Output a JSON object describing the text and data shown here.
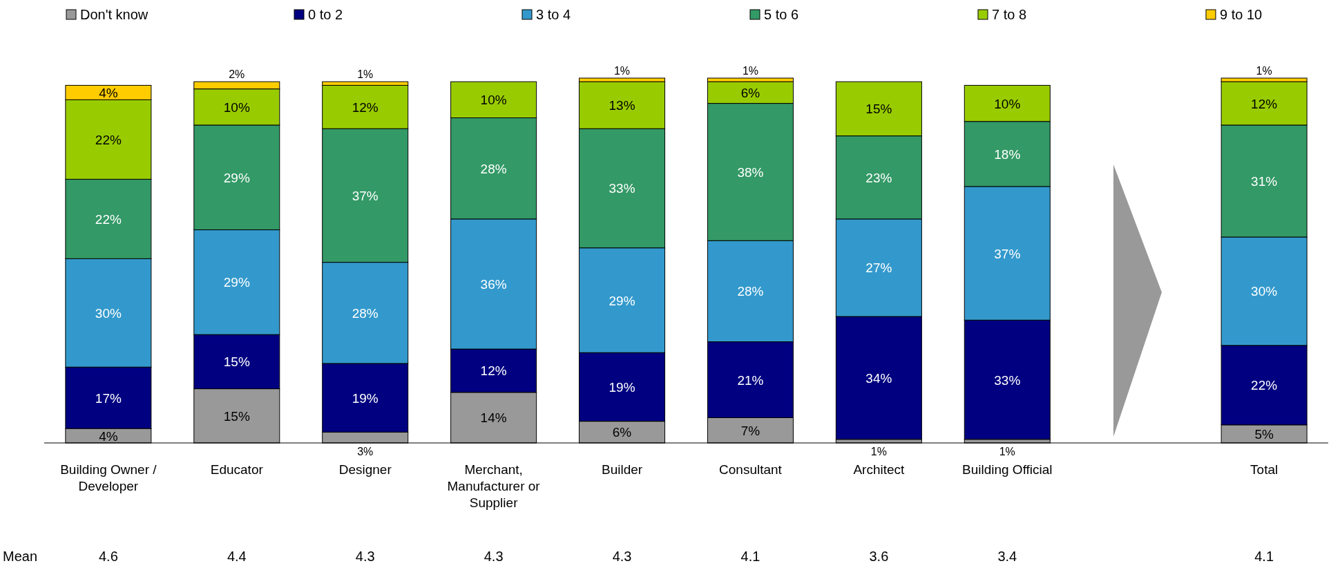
{
  "chart_data": {
    "type": "bar",
    "stacked": true,
    "legend": "top",
    "tick_labels": "x",
    "categories": [
      "Building Owner / Developer",
      "Educator",
      "Designer",
      "Merchant, Manufacturer or Supplier",
      "Builder",
      "Consultant",
      "Architect",
      "Building Official",
      null,
      "Total"
    ],
    "series": [
      {
        "name": "Don't know",
        "color": "#999999",
        "values": [
          4,
          15,
          3,
          14,
          6,
          7,
          1,
          1,
          null,
          5
        ],
        "value_labels": [
          "4%",
          "15%",
          "3%",
          "14%",
          "6%",
          "7%",
          "1%",
          "1%",
          null,
          "5%"
        ]
      },
      {
        "name": "0 to 2",
        "color": "#000080",
        "values": [
          17,
          15,
          19,
          12,
          19,
          21,
          34,
          33,
          null,
          22
        ],
        "value_labels": [
          "17%",
          "15%",
          "19%",
          "12%",
          "19%",
          "21%",
          "34%",
          "33%",
          null,
          "22%"
        ]
      },
      {
        "name": "3 to 4",
        "color": "#3399cc",
        "values": [
          30,
          29,
          28,
          36,
          29,
          28,
          27,
          37,
          null,
          30
        ],
        "value_labels": [
          "30%",
          "29%",
          "28%",
          "36%",
          "29%",
          "28%",
          "27%",
          "37%",
          null,
          "30%"
        ]
      },
      {
        "name": "5 to 6",
        "color": "#339966",
        "values": [
          22,
          29,
          37,
          28,
          33,
          38,
          23,
          18,
          null,
          31
        ],
        "value_labels": [
          "22%",
          "29%",
          "37%",
          "28%",
          "33%",
          "38%",
          "23%",
          "18%",
          null,
          "31%"
        ]
      },
      {
        "name": "7 to 8",
        "color": "#99cc00",
        "values": [
          22,
          10,
          12,
          10,
          13,
          6,
          15,
          10,
          null,
          12
        ],
        "value_labels": [
          "22%",
          "10%",
          "12%",
          "10%",
          "13%",
          "6%",
          "15%",
          "10%",
          null,
          "12%"
        ]
      },
      {
        "name": "9 to 10",
        "color": "#ffcc00",
        "values": [
          4,
          2,
          1,
          null,
          1,
          1,
          null,
          null,
          null,
          1
        ],
        "value_labels": [
          "4%",
          "2%",
          "1%",
          null,
          "1%",
          "1%",
          null,
          null,
          null,
          "1%"
        ]
      }
    ],
    "annotations": [
      "Mean",
      "4.6",
      "4.4",
      "4.3",
      "4.3",
      "4.3",
      "4.1",
      "3.6",
      "3.4",
      "4.1"
    ]
  }
}
